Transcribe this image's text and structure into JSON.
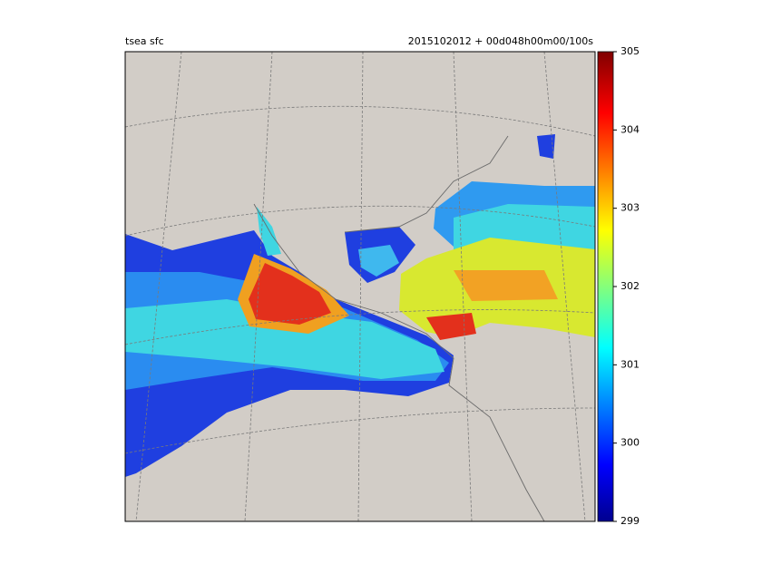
{
  "header": {
    "left_title": "tsea sfc",
    "right_title": "2015102012 + 00d048h00m00/100s"
  },
  "colorbar": {
    "lim": [
      299,
      305
    ],
    "ticks": [
      299,
      300,
      301,
      302,
      303,
      304,
      305
    ]
  }
}
